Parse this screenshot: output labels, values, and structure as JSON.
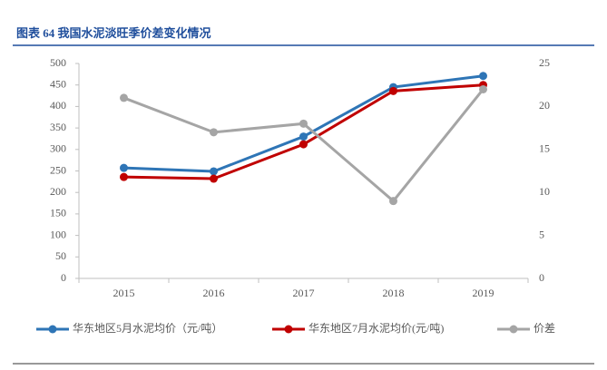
{
  "chart_data": {
    "type": "line",
    "title": "图表 64 我国水泥淡旺季价差变化情况",
    "categories": [
      "2015",
      "2016",
      "2017",
      "2018",
      "2019"
    ],
    "series": [
      {
        "name": "华东地区5月水泥均价（元/吨）",
        "color": "#2e75b6",
        "values": [
          257,
          249,
          330,
          445,
          471
        ]
      },
      {
        "name": "华东地区7月水泥均价(元/吨)",
        "color": "#c00000",
        "values": [
          236,
          232,
          312,
          436,
          450
        ]
      },
      {
        "name": "价差",
        "color": "#a5a5a5",
        "values": [
          21,
          17,
          18,
          9,
          22
        ],
        "axis": "y2"
      }
    ],
    "ylim": [
      0,
      500
    ],
    "yticks": [
      0,
      50,
      100,
      150,
      200,
      250,
      300,
      350,
      400,
      450,
      500
    ],
    "y2lim": [
      0,
      25
    ],
    "y2ticks": [
      0,
      5,
      10,
      15,
      20,
      25
    ],
    "legend": "bottom"
  }
}
